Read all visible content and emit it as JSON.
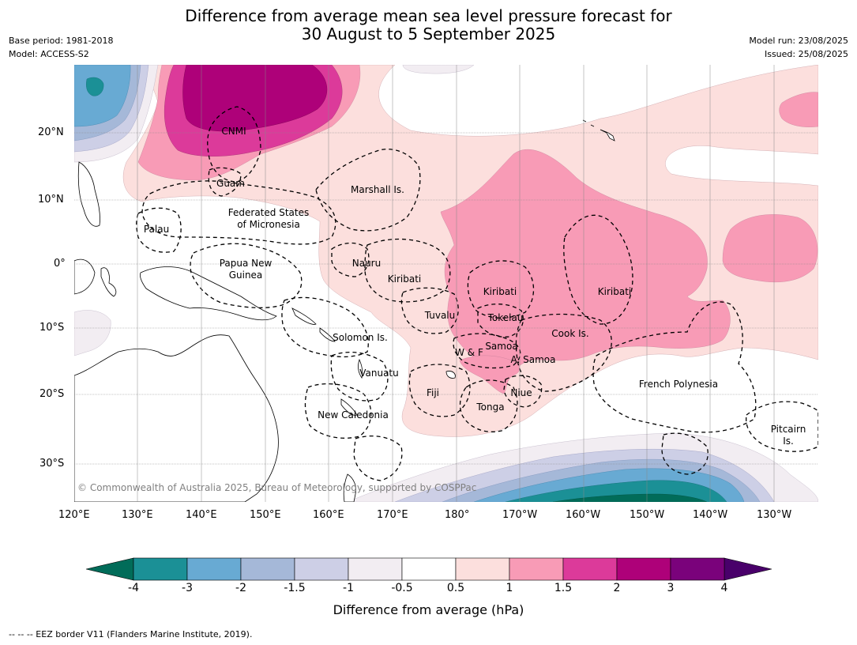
{
  "title_line1": "Difference from average mean sea level pressure forecast for",
  "title_line2": "30 August to 5 September 2025",
  "base_period": "Base period: 1981-2018",
  "model": "Model: ACCESS-S2",
  "model_run": "Model run: 23/08/2025",
  "issued": "Issued: 25/08/2025",
  "copyright": "© Commonwealth of Australia 2025, Bureau of Meteorology, supported by COSPPac",
  "footnote": "--  --  -- EEZ border V11 (Flanders Marine Institute, 2019).",
  "lon_labels": [
    "120°E",
    "130°E",
    "140°E",
    "150°E",
    "160°E",
    "170°E",
    "180°",
    "170°W",
    "160°W",
    "150°W",
    "140°W",
    "130°W"
  ],
  "lat_labels": [
    "20°N",
    "10°N",
    "0°",
    "10°S",
    "20°S",
    "30°S"
  ],
  "region_labels": {
    "cnmi": "CNMI",
    "guam": "Guam",
    "marshall": "Marshall Is.",
    "fsm_1": "Federated States",
    "fsm_2": "of Micronesia",
    "palau": "Palau",
    "png_1": "Papua New",
    "png_2": "Guinea",
    "nauru": "Nauru",
    "kiribati_w": "Kiribati",
    "kiribati_c": "Kiribati",
    "kiribati_e": "Kiribati",
    "tuvalu": "Tuvalu",
    "tokelau": "Tokelau",
    "cook": "Cook Is.",
    "solomon": "Solomon Is.",
    "samoa": "Samoa",
    "wf": "W & F",
    "asamoa": "A. Samoa",
    "vanuatu": "Vanuatu",
    "fiji": "Fiji",
    "niue": "Niue",
    "tonga": "Tonga",
    "frpoly": "French Polynesia",
    "newcal": "New Caledonia",
    "pitcairn_1": "Pitcairn",
    "pitcairn_2": "Is."
  },
  "colorbar": {
    "ticks": [
      "-4",
      "-3",
      "-2",
      "-1.5",
      "-1",
      "-0.5",
      "0.5",
      "1",
      "1.5",
      "2",
      "3",
      "4"
    ],
    "colors": [
      "#1b9096",
      "#68aad3",
      "#a5b8d8",
      "#cdcfe6",
      "#f2edf2",
      "#ffffff",
      "#fcdfdd",
      "#f89bb6",
      "#dc3a9a",
      "#ae0179",
      "#7a027b"
    ],
    "under_color": "#016c59",
    "over_color": "#49006a",
    "label": "Difference from average (hPa)"
  }
}
